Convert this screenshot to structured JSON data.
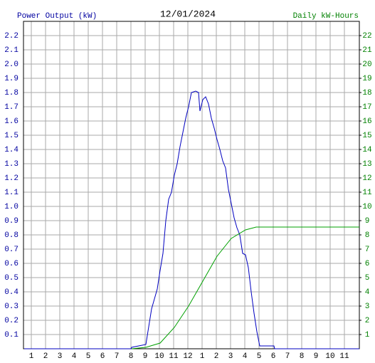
{
  "chart_data": {
    "type": "line",
    "title": "12/01/2024",
    "y_label": "Power Output (kW)",
    "y2_label": "Daily kW-Hours",
    "xlim": [
      0.45,
      24.05
    ],
    "xticks": [
      1,
      2,
      3,
      4,
      5,
      6,
      7,
      8,
      9,
      10,
      11,
      12,
      {
        "value": 13,
        "label": "1"
      },
      {
        "value": 14,
        "label": "2"
      },
      {
        "value": 15,
        "label": "3"
      },
      {
        "value": 16,
        "label": "4"
      },
      {
        "value": 17,
        "label": "5"
      },
      {
        "value": 18,
        "label": "6"
      },
      {
        "value": 19,
        "label": "7"
      },
      {
        "value": 20,
        "label": "8"
      },
      {
        "value": 21,
        "label": "9"
      },
      {
        "value": 22,
        "label": "10"
      },
      {
        "value": 23,
        "label": "11"
      }
    ],
    "ylim": [
      0,
      2.3
    ],
    "yticks": [
      0.1,
      0.2,
      0.3,
      0.4,
      0.5,
      0.6,
      0.7,
      0.8,
      0.9,
      {
        "value": 1,
        "label": "1.0"
      },
      1.1,
      1.2,
      1.3,
      1.4,
      1.5,
      1.6,
      1.7,
      1.8,
      1.9,
      {
        "value": 2,
        "label": "2.0"
      },
      2.1,
      2.2
    ],
    "y2lim": [
      0,
      23
    ],
    "y2ticks": [
      1,
      2,
      3,
      4,
      5,
      6,
      7,
      8,
      9,
      10,
      11,
      12,
      13,
      14,
      15,
      16,
      17,
      18,
      19,
      20,
      21,
      22
    ],
    "grid": true,
    "y_color": "#0000a0",
    "y2_color": "#008000",
    "series": [
      {
        "color": "#0000c0",
        "x": [
          0.5,
          8.0,
          8.05,
          9.05,
          9.45,
          9.65,
          9.85,
          10.05,
          10.25,
          10.45,
          10.65,
          10.85,
          11.05,
          11.25,
          11.45,
          11.65,
          11.85,
          12.05,
          12.25,
          12.55,
          12.75,
          12.85,
          13.05,
          13.25,
          13.45,
          13.65,
          13.85,
          14.05,
          14.25,
          14.45,
          14.65,
          14.85,
          15.05,
          15.25,
          15.45,
          15.65,
          15.85,
          16.05,
          16.25,
          16.45,
          16.65,
          16.85,
          17.05,
          18.05,
          18.1,
          24.05
        ],
        "values": [
          0,
          0,
          0.01,
          0.03,
          0.28,
          0.35,
          0.42,
          0.55,
          0.67,
          0.9,
          1.05,
          1.1,
          1.22,
          1.3,
          1.42,
          1.52,
          1.62,
          1.7,
          1.8,
          1.81,
          1.8,
          1.67,
          1.75,
          1.77,
          1.72,
          1.62,
          1.55,
          1.47,
          1.4,
          1.32,
          1.27,
          1.12,
          1.02,
          0.92,
          0.85,
          0.8,
          0.67,
          0.66,
          0.57,
          0.4,
          0.25,
          0.12,
          0.02,
          0.02,
          0,
          0
        ]
      },
      {
        "color": "#00a000",
        "axis": "y2",
        "x": [
          8.05,
          9.05,
          10.05,
          11.05,
          12.05,
          13.05,
          14.05,
          15.05,
          16.05,
          16.8,
          24.05
        ],
        "values": [
          0,
          0.1,
          0.4,
          1.5,
          3.0,
          4.75,
          6.5,
          7.75,
          8.35,
          8.55,
          8.55
        ]
      }
    ]
  }
}
